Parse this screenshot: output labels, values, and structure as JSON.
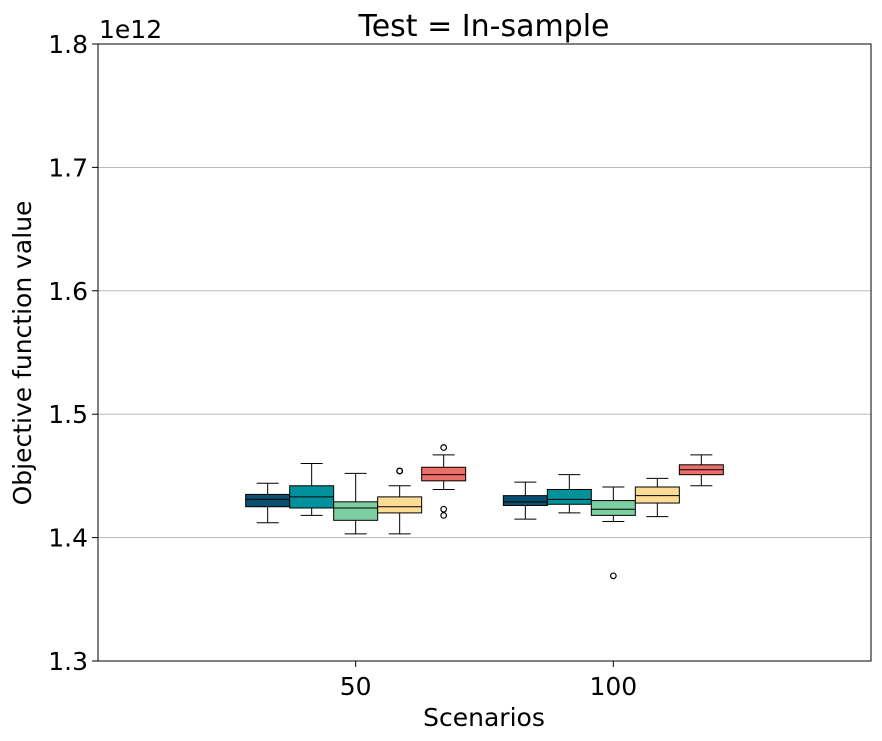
{
  "chart_data": {
    "type": "box",
    "title": "Test = In-sample",
    "xlabel": "Scenarios",
    "ylabel": "Objective function value",
    "y_offset_label": "1e12",
    "y_scale_factor": 1000000000000.0,
    "ylim": [
      1.3,
      1.8
    ],
    "yticks": [
      1.3,
      1.4,
      1.5,
      1.6,
      1.7,
      1.8
    ],
    "ytick_labels": [
      "1.3",
      "1.4",
      "1.5",
      "1.6",
      "1.7",
      "1.8"
    ],
    "grid": "horizontal",
    "categories": [
      "50",
      "100"
    ],
    "series": [
      {
        "color": "#0a4f70",
        "boxes": [
          {
            "whislo": 1.412,
            "q1": 1.425,
            "med": 1.431,
            "q3": 1.435,
            "whishi": 1.444,
            "fliers": []
          },
          {
            "whislo": 1.415,
            "q1": 1.426,
            "med": 1.429,
            "q3": 1.434,
            "whishi": 1.445,
            "fliers": []
          }
        ]
      },
      {
        "color": "#00919a",
        "boxes": [
          {
            "whislo": 1.418,
            "q1": 1.424,
            "med": 1.433,
            "q3": 1.442,
            "whishi": 1.46,
            "fliers": []
          },
          {
            "whislo": 1.42,
            "q1": 1.427,
            "med": 1.431,
            "q3": 1.439,
            "whishi": 1.451,
            "fliers": []
          }
        ]
      },
      {
        "color": "#7dcfa1",
        "boxes": [
          {
            "whislo": 1.403,
            "q1": 1.414,
            "med": 1.424,
            "q3": 1.429,
            "whishi": 1.452,
            "fliers": []
          },
          {
            "whislo": 1.413,
            "q1": 1.418,
            "med": 1.423,
            "q3": 1.43,
            "whishi": 1.441,
            "fliers": [
              1.369
            ]
          }
        ]
      },
      {
        "color": "#fddc95",
        "boxes": [
          {
            "whislo": 1.403,
            "q1": 1.42,
            "med": 1.425,
            "q3": 1.433,
            "whishi": 1.442,
            "fliers": [
              1.454,
              1.454
            ]
          },
          {
            "whislo": 1.417,
            "q1": 1.428,
            "med": 1.434,
            "q3": 1.441,
            "whishi": 1.448,
            "fliers": []
          }
        ]
      },
      {
        "color": "#ec6f6a",
        "boxes": [
          {
            "whislo": 1.439,
            "q1": 1.446,
            "med": 1.451,
            "q3": 1.457,
            "whishi": 1.467,
            "fliers": [
              1.473,
              1.423,
              1.418
            ]
          },
          {
            "whislo": 1.442,
            "q1": 1.451,
            "med": 1.455,
            "q3": 1.459,
            "whishi": 1.467,
            "fliers": []
          }
        ]
      }
    ]
  }
}
